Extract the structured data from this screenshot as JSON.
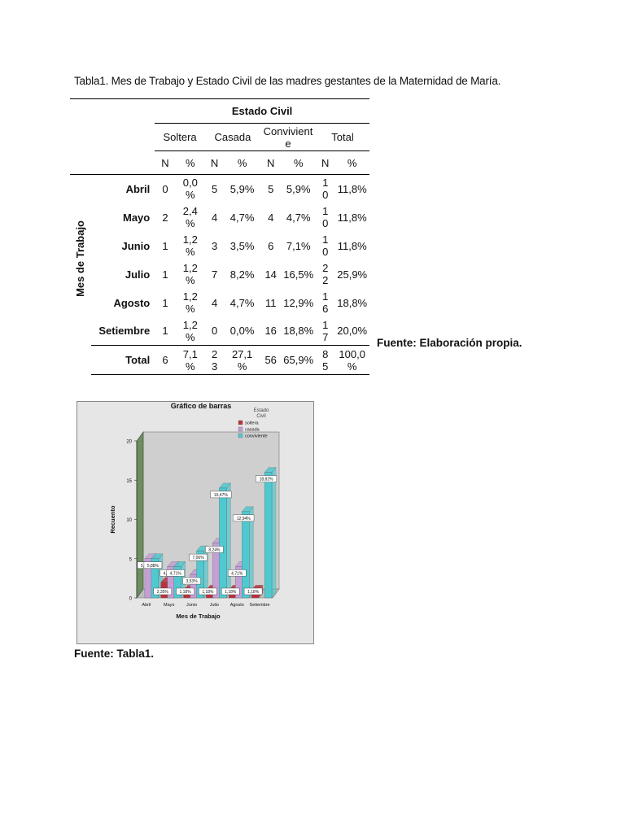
{
  "caption": "Tabla1. Mes de Trabajo y Estado Civil de las madres gestantes de la Maternidad de María.",
  "table": {
    "group_header": "Estado Civil",
    "row_dimension": "Mes de Trabajo",
    "columns": [
      "Soltera",
      "Casada",
      "Convivient\ne",
      "Total"
    ],
    "subheaders": [
      "N",
      "%",
      "N",
      "%",
      "N",
      "%",
      "N",
      "%"
    ],
    "rows": [
      {
        "label": "Abril",
        "cells": [
          "0",
          "0,0\n%",
          "5",
          "5,9%",
          "5",
          "5,9%",
          "1\n0",
          "11,8%"
        ]
      },
      {
        "label": "Mayo",
        "cells": [
          "2",
          "2,4\n%",
          "4",
          "4,7%",
          "4",
          "4,7%",
          "1\n0",
          "11,8%"
        ]
      },
      {
        "label": "Junio",
        "cells": [
          "1",
          "1,2\n%",
          "3",
          "3,5%",
          "6",
          "7,1%",
          "1\n0",
          "11,8%"
        ]
      },
      {
        "label": "Julio",
        "cells": [
          "1",
          "1,2\n%",
          "7",
          "8,2%",
          "14",
          "16,5%",
          "2\n2",
          "25,9%"
        ]
      },
      {
        "label": "Agosto",
        "cells": [
          "1",
          "1,2\n%",
          "4",
          "4,7%",
          "11",
          "12,9%",
          "1\n6",
          "18,8%"
        ]
      },
      {
        "label": "Setiembre",
        "cells": [
          "1",
          "1,2\n%",
          "0",
          "0,0%",
          "16",
          "18,8%",
          "1\n7",
          "20,0%"
        ]
      }
    ],
    "total": {
      "label": "Total",
      "cells": [
        "6",
        "7,1\n%",
        "2\n3",
        "27,1\n%",
        "56",
        "65,9%",
        "8\n5",
        "100,0\n%"
      ]
    }
  },
  "note_right": "Fuente: Elaboración propia.",
  "note_bottom": "Fuente: Tabla1.",
  "colors": {
    "soltera": "#c0303b",
    "casada": "#c39fd6",
    "conviviente": "#4fc9cf",
    "plot_bg": "#cfcfcf",
    "frame_bg": "#e6e6e6",
    "wall": "#6b8f5e"
  },
  "chart_data": {
    "type": "bar",
    "title": "Gráfico de barras",
    "xlabel": "Mes de Trabajo",
    "ylabel": "Recuento",
    "categories": [
      "Abril",
      "Mayo",
      "Junio",
      "Julio",
      "Agosto",
      "Setiembre"
    ],
    "ylim": [
      0,
      20
    ],
    "yticks": [
      "0",
      "5",
      "10",
      "15",
      "20"
    ],
    "legend_title": "Estado\nCivil",
    "legend_position": "top-right",
    "series": [
      {
        "name": "soltera",
        "values": [
          0,
          2,
          1,
          1,
          1,
          1
        ],
        "labels": [
          "",
          "2,35%",
          "1,18%",
          "1,18%",
          "1,18%",
          "1,18%"
        ]
      },
      {
        "name": "casada",
        "values": [
          5,
          4,
          3,
          7,
          4,
          0
        ],
        "labels": [
          "5,88%",
          "4,71%",
          "3,53%",
          "8,24%",
          "4,71%",
          ""
        ]
      },
      {
        "name": "conviviente",
        "values": [
          5,
          4,
          6,
          14,
          11,
          16
        ],
        "labels": [
          "5,88%",
          "4,71%",
          "7,06%",
          "16,47%",
          "12,94%",
          "18,82%"
        ]
      }
    ]
  }
}
